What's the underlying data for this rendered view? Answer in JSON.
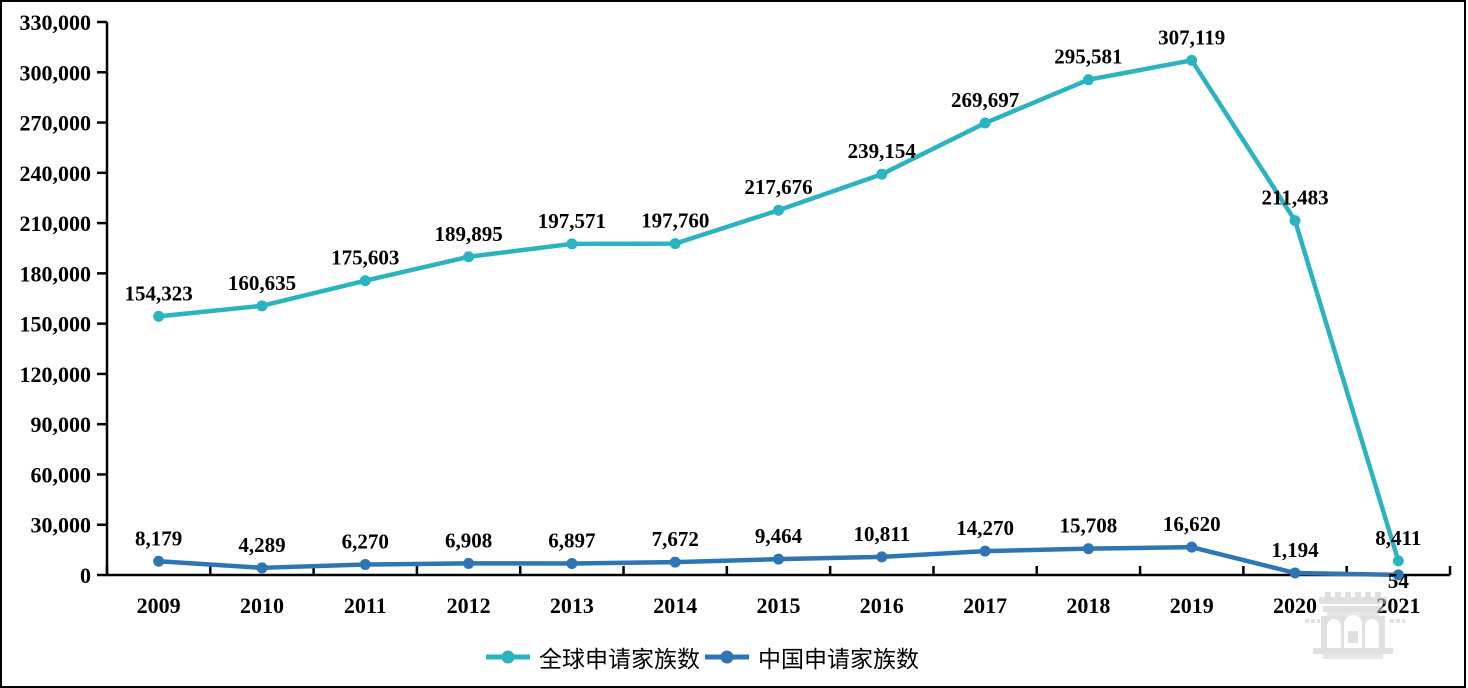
{
  "chart_data": {
    "type": "line",
    "title": "",
    "xlabel": "",
    "ylabel": "",
    "grid": false,
    "legend_position": "bottom",
    "categories": [
      "2009",
      "2010",
      "2011",
      "2012",
      "2013",
      "2014",
      "2015",
      "2016",
      "2017",
      "2018",
      "2019",
      "2020",
      "2021"
    ],
    "ylim": [
      0,
      330000
    ],
    "ytick_step": 30000,
    "ytick_labels": [
      "0",
      "30,000",
      "60,000",
      "90,000",
      "120,000",
      "150,000",
      "180,000",
      "210,000",
      "240,000",
      "270,000",
      "300,000",
      "330,000"
    ],
    "series": [
      {
        "name": "全球申请家族数",
        "color": "#2ab4bf",
        "values": [
          154323,
          160635,
          175603,
          189895,
          197571,
          197760,
          217676,
          239154,
          269697,
          295581,
          307119,
          211483,
          8411
        ],
        "labels": [
          "154,323",
          "160,635",
          "175,603",
          "189,895",
          "197,571",
          "197,760",
          "217,676",
          "239,154",
          "269,697",
          "295,581",
          "307,119",
          "211,483",
          "8,411"
        ]
      },
      {
        "name": "中国申请家族数",
        "color": "#2e75b6",
        "values": [
          8179,
          4289,
          6270,
          6908,
          6897,
          7672,
          9464,
          10811,
          14270,
          15708,
          16620,
          1194,
          54
        ],
        "labels": [
          "8,179",
          "4,289",
          "6,270",
          "6,908",
          "6,897",
          "7,672",
          "9,464",
          "10,811",
          "14,270",
          "15,708",
          "16,620",
          "1,194",
          "54"
        ]
      }
    ]
  },
  "legend": {
    "items": [
      {
        "label": "全球申请家族数",
        "color": "#2ab4bf"
      },
      {
        "label": "中国申请家族数",
        "color": "#2e75b6"
      }
    ]
  },
  "colors": {
    "axis": "#000000",
    "global_series": "#2ab4bf",
    "china_series": "#2e75b6",
    "watermark": "#c8c8c8",
    "frame_border": "#000000"
  },
  "icons": {
    "watermark": "gate-building-watermark-icon",
    "legend_markers": "line-dot-marker-icon"
  }
}
